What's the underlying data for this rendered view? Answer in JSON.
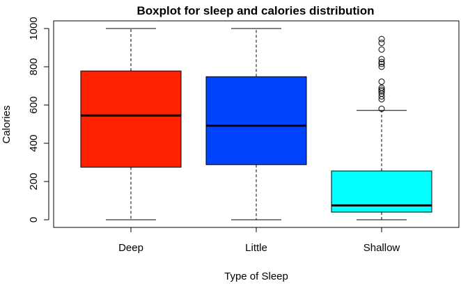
{
  "chart_data": {
    "type": "box",
    "title": "Boxplot for sleep and calories distribution",
    "xlabel": "Type of Sleep",
    "ylabel": "Calories",
    "ylim": [
      -40,
      1040
    ],
    "yticks": [
      0,
      200,
      400,
      600,
      800,
      1000
    ],
    "grid": false,
    "categories": [
      "Deep",
      "Little",
      "Shallow"
    ],
    "boxes": [
      {
        "category": "Deep",
        "color": "#ff2200",
        "whisker_low": 0,
        "q1": 275,
        "median": 545,
        "q3": 778,
        "whisker_high": 1000,
        "outliers": []
      },
      {
        "category": "Little",
        "color": "#0044ff",
        "whisker_low": 0,
        "q1": 288,
        "median": 492,
        "q3": 748,
        "whisker_high": 1000,
        "outliers": []
      },
      {
        "category": "Shallow",
        "color": "#00ffff",
        "whisker_low": 0,
        "q1": 40,
        "median": 75,
        "q3": 255,
        "whisker_high": 572,
        "outliers": [
          580,
          630,
          645,
          660,
          672,
          680,
          690,
          722,
          800,
          815,
          825,
          840,
          890,
          925,
          945
        ]
      }
    ]
  }
}
